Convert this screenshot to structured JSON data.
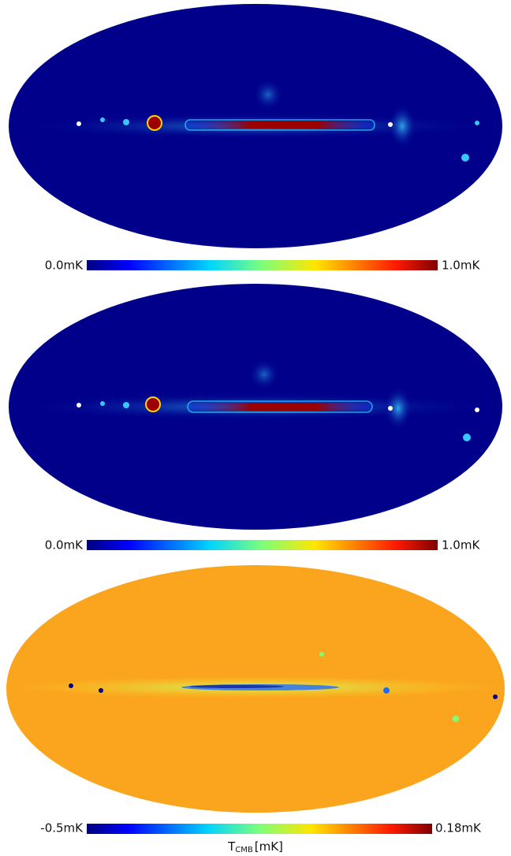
{
  "panels": [
    {
      "colorbar": {
        "min_label": "0.0mK",
        "max_label": "1.0mK"
      }
    },
    {
      "colorbar": {
        "min_label": "0.0mK",
        "max_label": "1.0mK"
      }
    },
    {
      "colorbar": {
        "min_label": "-0.5mK",
        "max_label": "0.18mK",
        "title": {
          "symbol": "T",
          "subscript": "CMB",
          "unit": "[mK]"
        }
      }
    }
  ]
}
